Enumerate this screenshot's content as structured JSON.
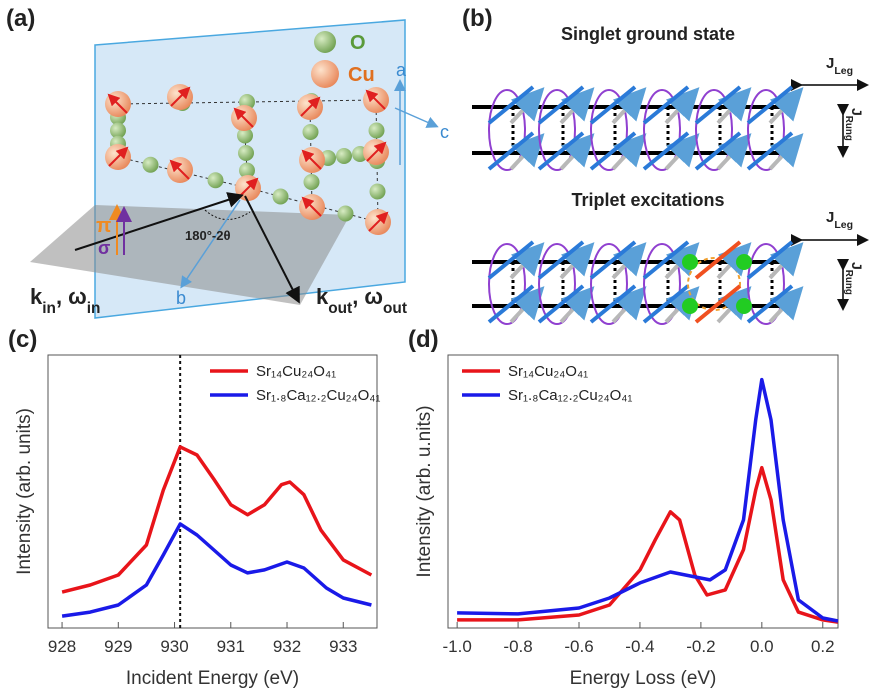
{
  "panel_a": {
    "label": "(a)",
    "legend": {
      "o": "O",
      "cu": "Cu"
    },
    "axes": {
      "a": "a",
      "c": "c",
      "b": "b"
    },
    "pi": "π",
    "sigma": "σ",
    "angle": "180°-2θ",
    "k_in": {
      "k": "k",
      "k_sub": "in",
      "sep": ", ",
      "w": "ω",
      "w_sub": "in"
    },
    "k_out": {
      "k": "k",
      "k_sub": "out",
      "sep": ", ",
      "w": "ω",
      "w_sub": "out"
    }
  },
  "panel_b": {
    "label": "(b)",
    "singlet": {
      "title": "Singlet ground state",
      "j_leg": {
        "symbol": "J",
        "sub": "Leg"
      },
      "j_rung": {
        "symbol": "J",
        "sub": "Rung"
      }
    },
    "triplet": {
      "title": "Triplet excitations",
      "j_leg": {
        "symbol": "J",
        "sub": "Leg"
      },
      "j_rung": {
        "symbol": "J",
        "sub": "Rung"
      }
    }
  },
  "chart_data": [
    {
      "type": "line",
      "label": "(c)",
      "xlabel": "Incident Energy (eV)",
      "ylabel": "Intensity (arb. units)",
      "xlim": [
        927.75,
        933.6
      ],
      "ylim": [
        0,
        10.1
      ],
      "xticks": [
        928,
        929,
        930,
        931,
        932,
        933
      ],
      "vline": 930.1,
      "series": [
        {
          "name": "Sr₁₄Cu₂₄O₄₁",
          "color": "#e8141a",
          "x": [
            928,
            928.5,
            929,
            929.5,
            929.8,
            930.1,
            930.4,
            930.7,
            931,
            931.3,
            931.6,
            931.9,
            932.05,
            932.3,
            932.6,
            933,
            933.5
          ],
          "values": [
            1.33,
            1.59,
            1.96,
            3.07,
            5.1,
            6.7,
            6.4,
            5.5,
            4.56,
            4.19,
            4.56,
            5.3,
            5.4,
            4.93,
            3.63,
            2.52,
            1.96
          ]
        },
        {
          "name": "Sr₁.₈Ca₁₂.₂Cu₂₄O₄₁",
          "color": "#1a1ae8",
          "x": [
            928,
            928.5,
            929,
            929.5,
            929.8,
            930.1,
            930.4,
            930.6,
            931,
            931.3,
            931.6,
            932,
            932.3,
            932.7,
            933,
            933.5
          ],
          "values": [
            0.44,
            0.59,
            0.85,
            1.59,
            2.7,
            3.85,
            3.44,
            3.07,
            2.33,
            2.04,
            2.15,
            2.44,
            2.22,
            1.48,
            1.11,
            0.85
          ]
        }
      ]
    },
    {
      "type": "line",
      "label": "(d)",
      "xlabel": "Energy Loss (eV)",
      "ylabel": "Intensity (arb. u.nits)",
      "xlim": [
        -1.03,
        0.25
      ],
      "ylim": [
        0,
        10.1
      ],
      "xticks": [
        {
          "value": -1.0,
          "label": "-1.0"
        },
        -0.8,
        -0.6,
        -0.4,
        -0.2,
        {
          "value": 0,
          "label": "0.0"
        },
        0.2
      ],
      "series": [
        {
          "name": "Sr₁₄Cu₂₄O₄₁",
          "color": "#e8141a",
          "x": [
            -1.0,
            -0.8,
            -0.6,
            -0.5,
            -0.4,
            -0.35,
            -0.3,
            -0.27,
            -0.22,
            -0.18,
            -0.12,
            -0.06,
            -0.02,
            0,
            0.03,
            0.07,
            0.12,
            0.2,
            0.25
          ],
          "values": [
            0.3,
            0.3,
            0.48,
            0.85,
            2.15,
            3.26,
            4.3,
            4.0,
            1.96,
            1.22,
            1.41,
            2.9,
            5.1,
            5.93,
            4.74,
            1.78,
            0.59,
            0.3,
            0.22
          ]
        },
        {
          "name": "Sr₁.₈Ca₁₂.₂Cu₂₄O₄₁",
          "color": "#1a1ae8",
          "x": [
            -1.0,
            -0.8,
            -0.6,
            -0.5,
            -0.4,
            -0.3,
            -0.22,
            -0.17,
            -0.12,
            -0.06,
            -0.02,
            0,
            0.03,
            0.07,
            0.12,
            0.2,
            0.25
          ],
          "values": [
            0.56,
            0.52,
            0.74,
            1.11,
            1.67,
            2.07,
            1.89,
            1.78,
            2.15,
            4.0,
            7.7,
            9.19,
            7.7,
            4.0,
            1.04,
            0.37,
            0.26
          ]
        }
      ]
    }
  ]
}
